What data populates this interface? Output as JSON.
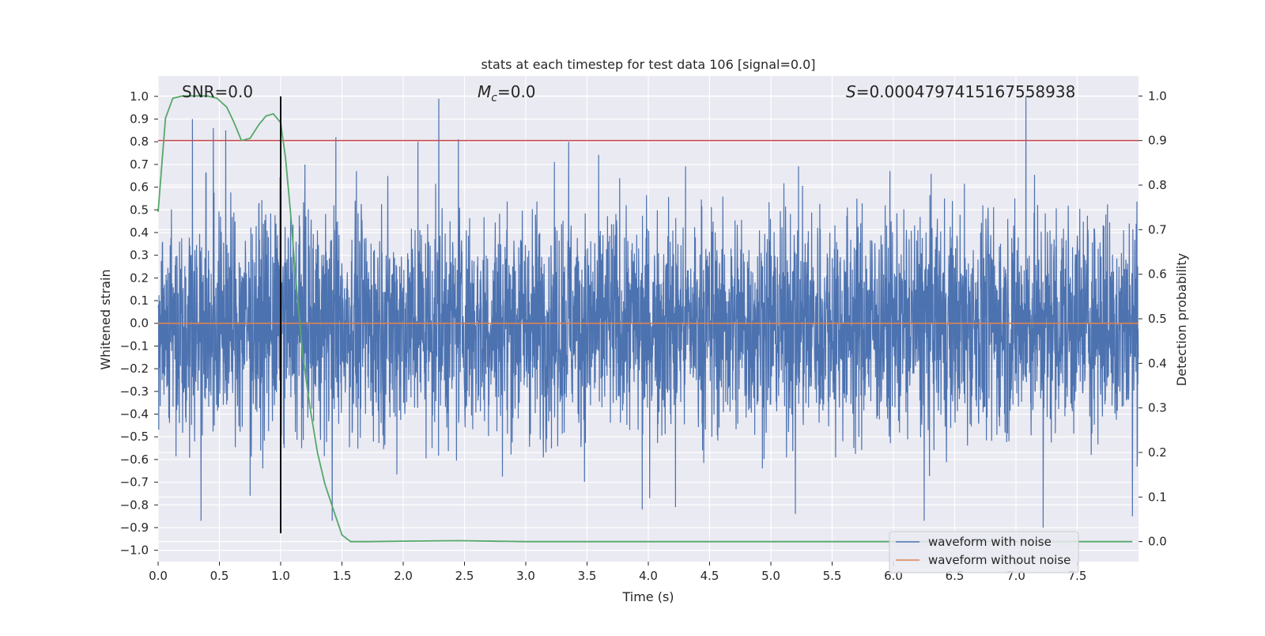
{
  "chart_data": {
    "type": "line",
    "title": "stats at each timestep for test data 106 [signal=0.0]",
    "xlabel": "Time (s)",
    "ylabel": "Whitened strain",
    "y2label": "Detection probability",
    "xlim": [
      0.0,
      8.0
    ],
    "ylim": [
      -1.05,
      1.09
    ],
    "y2lim": [
      -0.045,
      1.045
    ],
    "xticks": [
      "0.0",
      "0.5",
      "1.0",
      "1.5",
      "2.0",
      "2.5",
      "3.0",
      "3.5",
      "4.0",
      "4.5",
      "5.0",
      "5.5",
      "6.0",
      "6.5",
      "7.0",
      "7.5"
    ],
    "yticks": [
      "1.0",
      "0.9",
      "0.8",
      "0.7",
      "0.6",
      "0.5",
      "0.4",
      "0.3",
      "0.2",
      "0.1",
      "0.0",
      "−0.1",
      "−0.2",
      "−0.3",
      "−0.4",
      "−0.5",
      "−0.6",
      "−0.7",
      "−0.8",
      "−0.9",
      "−1.0"
    ],
    "y2ticks": [
      "1.0",
      "0.9",
      "0.8",
      "0.7",
      "0.6",
      "0.5",
      "0.4",
      "0.3",
      "0.2",
      "0.1",
      "0.0"
    ],
    "grid": true,
    "legend_position": "lower-right",
    "annotations": {
      "snr": "SNR=0.0",
      "mc_symbol": "M",
      "mc_subscript": "c",
      "mc_value": "=0.0",
      "s_symbol": "S",
      "s_value": "=0.0004797415167558938"
    },
    "series": [
      {
        "name": "waveform with noise",
        "color": "#4c72b0",
        "axis": "left",
        "description_envelope": "dense noise approx. between -0.9 and 1.0",
        "peaks_upper": [
          [
            0.28,
            0.9
          ],
          [
            0.45,
            0.86
          ],
          [
            0.55,
            0.85
          ],
          [
            1.45,
            0.82
          ],
          [
            2.12,
            0.8
          ],
          [
            2.29,
            0.99
          ],
          [
            2.45,
            0.81
          ],
          [
            3.35,
            0.8
          ],
          [
            7.08,
            1.0
          ]
        ],
        "peaks_lower": [
          [
            0.35,
            -0.87
          ],
          [
            0.75,
            -0.76
          ],
          [
            1.42,
            -0.87
          ],
          [
            3.95,
            -0.82
          ],
          [
            4.22,
            -0.81
          ],
          [
            5.2,
            -0.84
          ],
          [
            6.25,
            -0.87
          ],
          [
            7.22,
            -0.9
          ],
          [
            7.95,
            -0.85
          ]
        ]
      },
      {
        "name": "waveform without noise",
        "color": "#dd8452",
        "axis": "left",
        "x": [
          0.0,
          8.0
        ],
        "y": [
          0.0,
          0.0
        ]
      },
      {
        "name": "",
        "color": "#55a868",
        "axis": "right",
        "x": [
          0.0,
          0.06,
          0.12,
          0.2,
          0.3,
          0.4,
          0.48,
          0.56,
          0.62,
          0.68,
          0.75,
          0.82,
          0.88,
          0.94,
          1.0,
          1.04,
          1.08,
          1.12,
          1.18,
          1.24,
          1.3,
          1.36,
          1.42,
          1.5,
          1.57,
          1.7,
          2.0,
          2.45,
          3.0,
          4.0,
          5.0,
          6.0,
          7.0,
          7.95
        ],
        "y": [
          0.74,
          0.95,
          0.995,
          1.0,
          1.0,
          1.0,
          0.995,
          0.975,
          0.94,
          0.9,
          0.905,
          0.935,
          0.955,
          0.96,
          0.94,
          0.86,
          0.74,
          0.6,
          0.42,
          0.3,
          0.2,
          0.13,
          0.08,
          0.015,
          0.0,
          0.0,
          0.001,
          0.002,
          0.0,
          0.0,
          0.0,
          0.0,
          0.0,
          0.0
        ]
      }
    ],
    "threshold": {
      "axis": "right",
      "value": 0.9,
      "color": "#c44e52"
    },
    "vline": {
      "x": 1.0,
      "ymin": -0.925,
      "ymax": 1.0,
      "color": "#000000"
    }
  }
}
